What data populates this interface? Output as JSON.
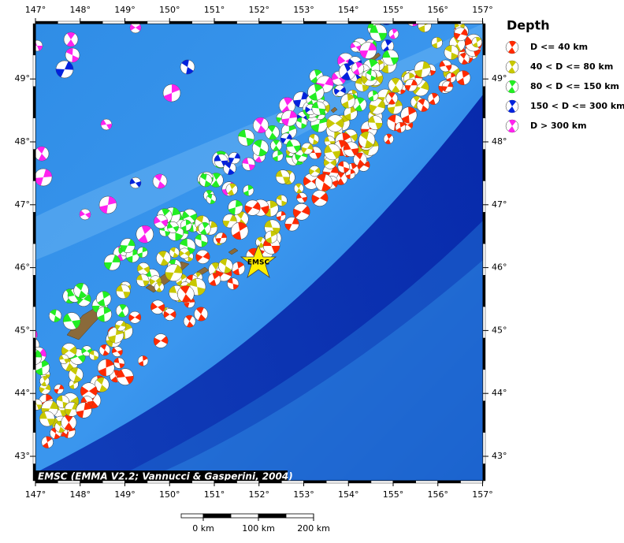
{
  "map": {
    "lon_ticks": [
      {
        "value": 147,
        "label": "147°"
      },
      {
        "value": 148,
        "label": "148°"
      },
      {
        "value": 149,
        "label": "149°"
      },
      {
        "value": 150,
        "label": "150°"
      },
      {
        "value": 151,
        "label": "151°"
      },
      {
        "value": 152,
        "label": "152°"
      },
      {
        "value": 153,
        "label": "153°"
      },
      {
        "value": 154,
        "label": "154°"
      },
      {
        "value": 155,
        "label": "155°"
      },
      {
        "value": 156,
        "label": "156°"
      },
      {
        "value": 157,
        "label": "157°"
      }
    ],
    "lat_ticks": [
      {
        "value": 43,
        "label": "43°"
      },
      {
        "value": 44,
        "label": "44°"
      },
      {
        "value": 45,
        "label": "45°"
      },
      {
        "value": 46,
        "label": "46°"
      },
      {
        "value": 47,
        "label": "47°"
      },
      {
        "value": 48,
        "label": "48°"
      },
      {
        "value": 49,
        "label": "49°"
      }
    ],
    "marker_label": "EMSC",
    "credit": "EMSC (EMMA V2.2; Vannucci & Gasperini, 2004)",
    "scale_labels": [
      "0 km",
      "100 km",
      "200 km"
    ],
    "legend": {
      "title": "Depth",
      "entries": [
        {
          "label": "D <= 40 km",
          "color": "#ff2a00"
        },
        {
          "label": "40 < D <= 80 km",
          "color": "#c8c800"
        },
        {
          "label": "80 < D <= 150 km",
          "color": "#22ee22"
        },
        {
          "label": "150 < D <= 300 km",
          "color": "#0022dd"
        },
        {
          "label": "D > 300 km",
          "color": "#ff22ee"
        }
      ]
    }
  }
}
